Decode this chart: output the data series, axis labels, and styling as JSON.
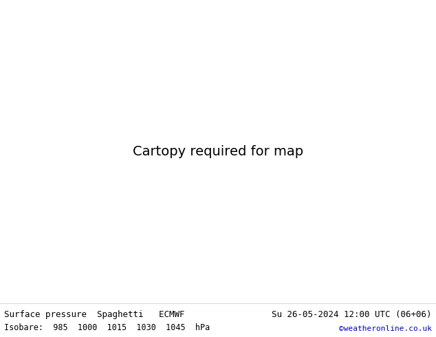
{
  "title_left": "Surface pressure  Spaghetti   ECMWF",
  "title_right": "Su 26-05-2024 12:00 UTC (06+06)",
  "subtitle_left": "Isobare:  985  1000  1015  1030  1045  hPa",
  "subtitle_right": "©weatheronline.co.uk",
  "subtitle_right_color": "#0000cc",
  "land_color": "#b5e8a0",
  "sea_color": "#e8e8e8",
  "border_color": "#888888",
  "coastline_color": "#888888",
  "text_color": "#000000",
  "footer_bg": "#ffffff",
  "figsize": [
    6.34,
    4.9
  ],
  "dpi": 100,
  "extent": [
    -18,
    62,
    24,
    58
  ],
  "isobar_colors": {
    "985": "#cc00cc",
    "1000": "#ff2200",
    "1015": "#009900",
    "1030": "#0000ee",
    "1045": "#00aaaa"
  },
  "extra_colors": [
    "#ff8800",
    "#888800",
    "#008888",
    "#880000",
    "#000088",
    "#ff00aa",
    "#aaff00"
  ],
  "contour_linewidth": 0.7,
  "title_fontsize": 9,
  "subtitle_fontsize": 8.5,
  "watermark_fontsize": 8
}
